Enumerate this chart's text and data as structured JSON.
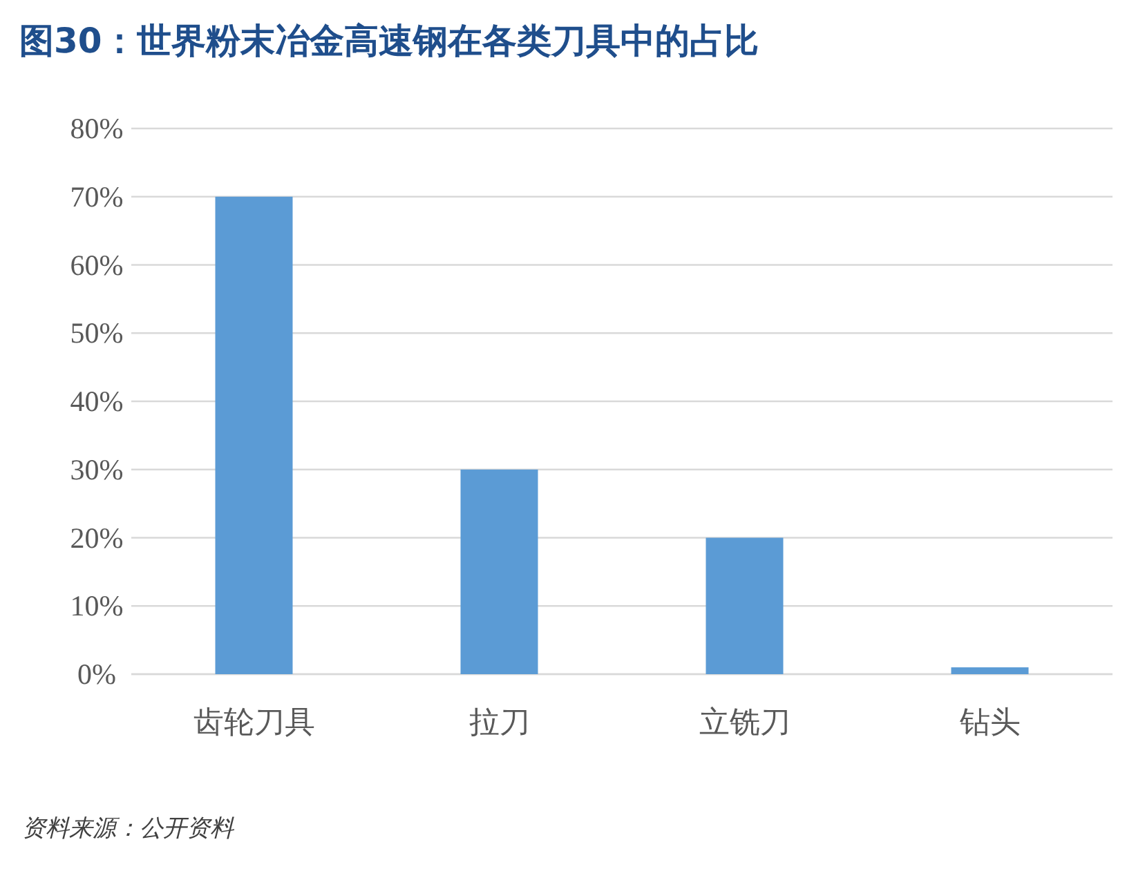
{
  "chart_data": {
    "type": "bar",
    "title": "图30：世界粉末冶金高速钢在各类刀具中的占比",
    "categories": [
      "齿轮刀具",
      "拉刀",
      "立铣刀",
      "钻头"
    ],
    "values": [
      70,
      30,
      20,
      1
    ],
    "color": "#5b9bd5",
    "ylim": [
      0,
      80
    ],
    "yticks": [
      {
        "value": 0,
        "label": "0%"
      },
      {
        "value": 10,
        "label": "10%"
      },
      {
        "value": 20,
        "label": "20%"
      },
      {
        "value": 30,
        "label": "30%"
      },
      {
        "value": 40,
        "label": "40%"
      },
      {
        "value": 50,
        "label": "50%"
      },
      {
        "value": 60,
        "label": "60%"
      },
      {
        "value": 70,
        "label": "70%"
      },
      {
        "value": 80,
        "label": "80%"
      }
    ],
    "grid": "y",
    "annotations": [
      "资料来源：公开资料"
    ]
  }
}
